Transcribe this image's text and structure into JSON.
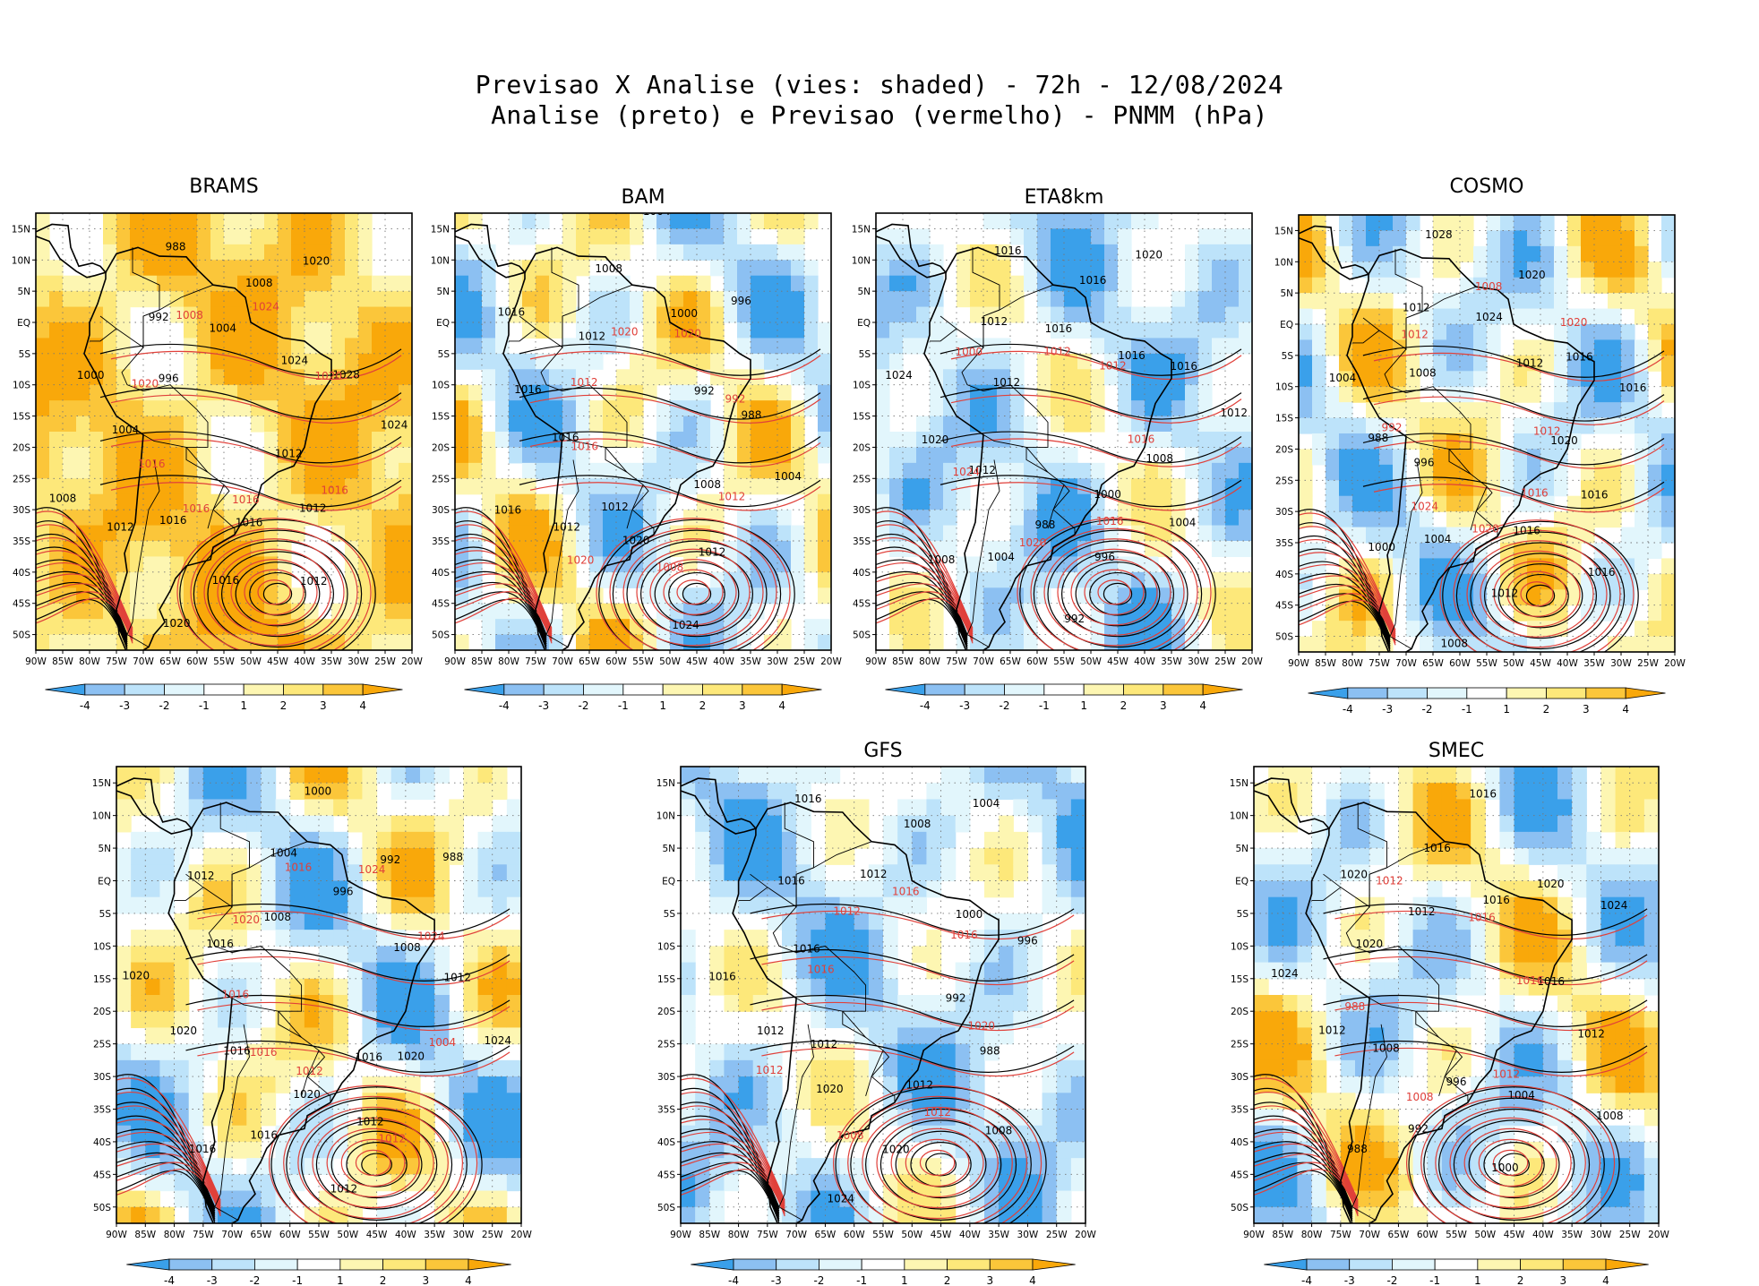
{
  "title": {
    "line1": "Previsao X Analise (vies: shaded) - 72h - 12/08/2024",
    "line2": "Analise (preto) e Previsao (vermelho) - PNMM (hPa)"
  },
  "colors": {
    "neg4": "#3aa0ea",
    "neg3": "#8cc0f2",
    "neg2": "#bde3fa",
    "neg1": "#e2f6fc",
    "zero": "#ffffff",
    "pos1": "#fdf6b2",
    "pos2": "#fde87a",
    "pos3": "#fbc63a",
    "pos4": "#f9a80a",
    "analysis_line": "#000000",
    "forecast_line": "#e0403a"
  },
  "axes": {
    "lat_labels": [
      "15N",
      "10N",
      "5N",
      "EQ",
      "5S",
      "10S",
      "15S",
      "20S",
      "25S",
      "30S",
      "35S",
      "40S",
      "45S",
      "50S"
    ],
    "lon_labels": [
      "90W",
      "85W",
      "80W",
      "75W",
      "70W",
      "65W",
      "60W",
      "55W",
      "50W",
      "45W",
      "40W",
      "35W",
      "30W",
      "25W",
      "20W"
    ]
  },
  "colorbar_labels": [
    "-4",
    "-3",
    "-2",
    "-1",
    "1",
    "2",
    "3",
    "4"
  ],
  "panels": [
    {
      "name": "BRAMS",
      "bias": "warm",
      "labels": {
        "analysis": [
          "1012",
          "1012",
          "1012",
          "1016",
          "1016",
          "1020",
          "1016",
          "1012",
          "1008",
          "1004",
          "1000",
          "996",
          "992",
          "988",
          "1004",
          "1008",
          "1020",
          "1024",
          "1028",
          "1024"
        ],
        "forecast": [
          "1016",
          "1016",
          "1016",
          "1020",
          "1008",
          "1024",
          "1020",
          "1016"
        ]
      }
    },
    {
      "name": "BAM",
      "bias": "mixed",
      "labels": {
        "analysis": [
          "1012",
          "1012",
          "1016",
          "1016",
          "1016",
          "1016",
          "1012",
          "1008",
          "1004",
          "1000",
          "996",
          "992",
          "988",
          "1004",
          "1008",
          "1012",
          "1024",
          "1020"
        ],
        "forecast": [
          "1016",
          "1012",
          "1020",
          "1020",
          "992",
          "1012",
          "1008",
          "1020"
        ]
      }
    },
    {
      "name": "ETA8km",
      "bias": "cool",
      "labels": {
        "analysis": [
          "1012",
          "1012",
          "1016",
          "1016",
          "1016",
          "1020",
          "1016",
          "1016",
          "1012",
          "1008",
          "1004",
          "1000",
          "996",
          "992",
          "988",
          "1004",
          "1008",
          "1012",
          "1020",
          "1024"
        ],
        "forecast": [
          "1012",
          "1012",
          "1016",
          "1016",
          "1020",
          "1024",
          "1000"
        ]
      }
    },
    {
      "name": "COSMO",
      "bias": "mixed",
      "labels": {
        "analysis": [
          "1012",
          "1016",
          "1016",
          "1020",
          "1016",
          "1016",
          "1016",
          "1012",
          "1008",
          "1004",
          "1000",
          "996",
          "988",
          "1004",
          "1008",
          "1012",
          "1028",
          "1024",
          "1020"
        ],
        "forecast": [
          "1012",
          "1016",
          "1020",
          "1024",
          "992",
          "1012",
          "1008",
          "1020"
        ]
      }
    },
    {
      "name": "",
      "bias": "mixed",
      "labels": {
        "analysis": [
          "1016",
          "1012",
          "1012",
          "1020",
          "1016",
          "1016",
          "1016",
          "1020",
          "1020",
          "1016",
          "1012",
          "1008",
          "1004",
          "1000",
          "996",
          "992",
          "988",
          "1008",
          "1012",
          "1024",
          "1020"
        ],
        "forecast": [
          "1012",
          "1016",
          "1016",
          "1020",
          "1016",
          "1024",
          "1024",
          "1004",
          "1012"
        ]
      }
    },
    {
      "name": "GFS",
      "bias": "cool",
      "labels": {
        "analysis": [
          "1012",
          "1012",
          "1016",
          "1016",
          "1016",
          "1016",
          "1012",
          "1008",
          "1004",
          "1000",
          "996",
          "992",
          "988",
          "1008",
          "1012",
          "1020",
          "1024",
          "1020"
        ],
        "forecast": [
          "1016",
          "1012",
          "1016",
          "1016",
          "1020",
          "1012",
          "1008",
          "1012"
        ]
      }
    },
    {
      "name": "SMEC",
      "bias": "mixed",
      "labels": {
        "analysis": [
          "1012",
          "1016",
          "1016",
          "1016",
          "1020",
          "1024",
          "1016",
          "1012",
          "1008",
          "1004",
          "1000",
          "996",
          "992",
          "988",
          "1008",
          "1012",
          "1024",
          "1020",
          "1020"
        ],
        "forecast": [
          "1016",
          "1016",
          "1012",
          "1008",
          "988",
          "1012"
        ]
      }
    }
  ]
}
